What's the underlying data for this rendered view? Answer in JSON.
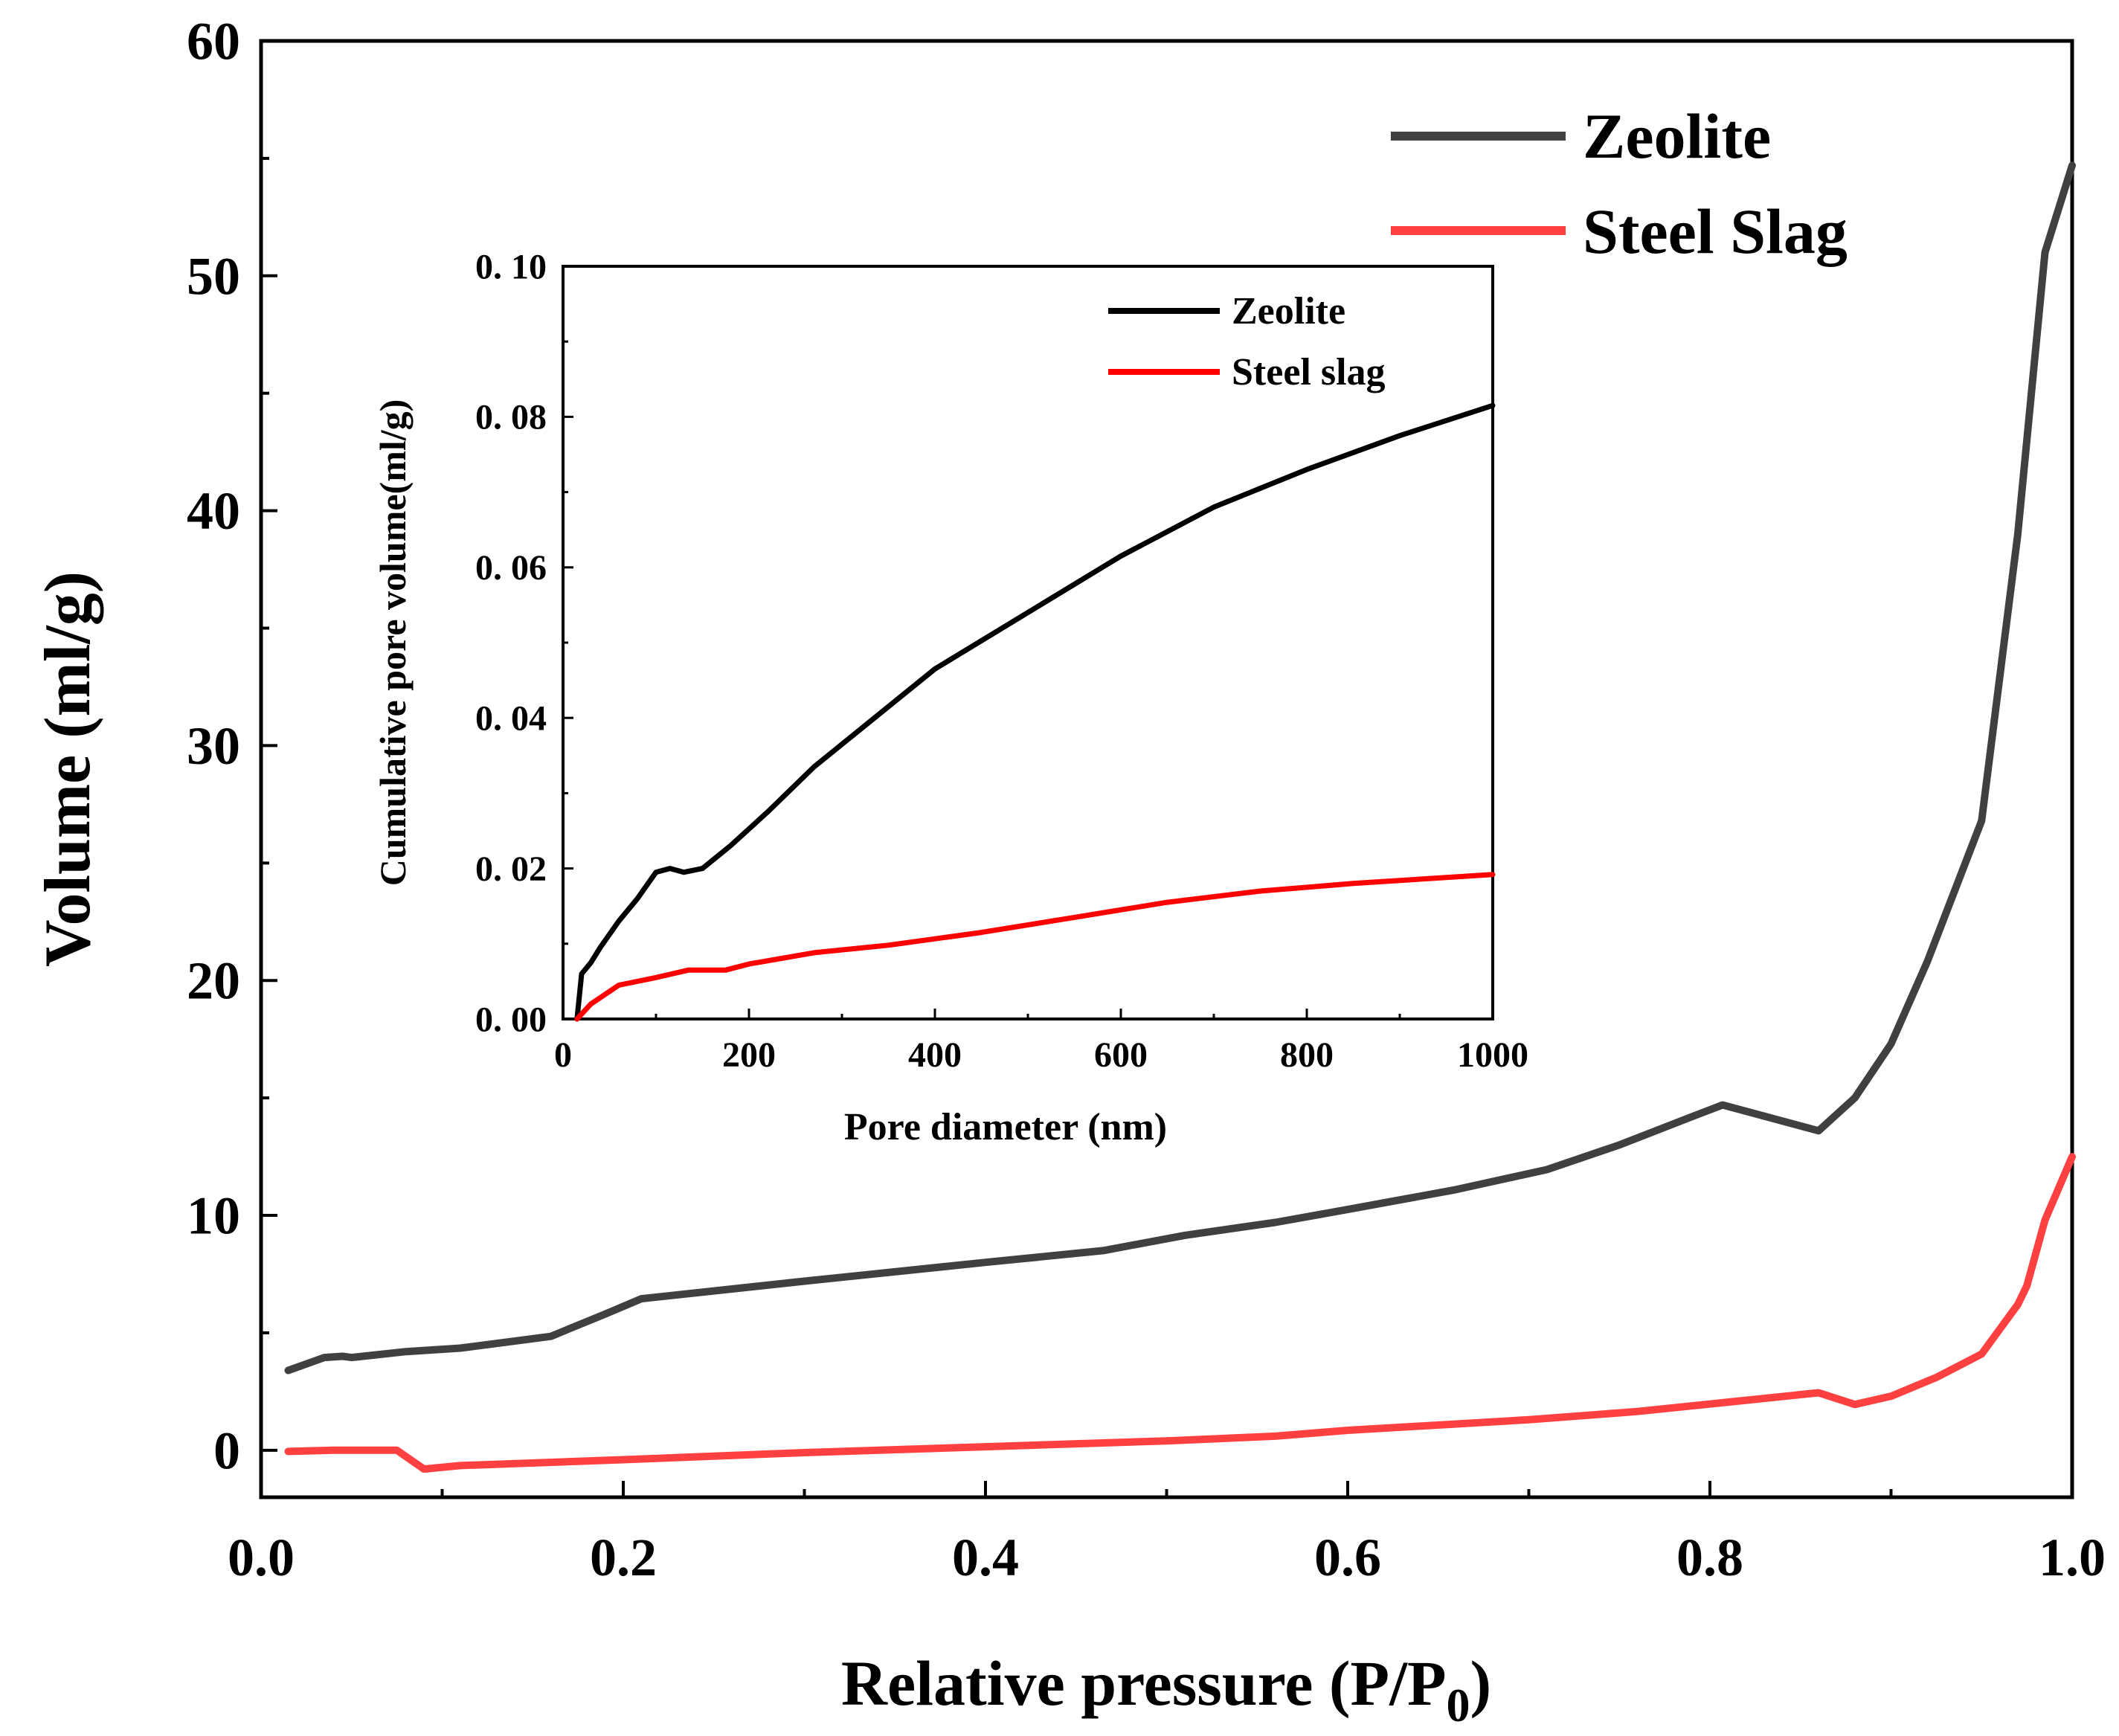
{
  "chart_data": [
    {
      "type": "line",
      "xlabel": "Relative pressure (P/P",
      "xlabel_sub": "0",
      "xlabel_close": ")",
      "ylabel": "Volume (ml/g)",
      "xlim": [
        0.0,
        1.0
      ],
      "ylim": [
        -2,
        60
      ],
      "xticks": [
        0.0,
        0.2,
        0.4,
        0.6,
        0.8,
        1.0
      ],
      "xtick_labels": [
        "0.0",
        "0.2",
        "0.4",
        "0.6",
        "0.8",
        "1.0"
      ],
      "yticks": [
        0,
        10,
        20,
        30,
        40,
        50,
        60
      ],
      "ytick_labels": [
        "0",
        "10",
        "20",
        "30",
        "40",
        "50",
        "60"
      ],
      "legend_position": "top-right",
      "series": [
        {
          "name": "Zeolite",
          "color": "#404040",
          "points": [
            [
              0.015,
              3.4
            ],
            [
              0.035,
              3.95
            ],
            [
              0.045,
              4.0
            ],
            [
              0.05,
              3.95
            ],
            [
              0.08,
              4.2
            ],
            [
              0.11,
              4.35
            ],
            [
              0.16,
              4.85
            ],
            [
              0.19,
              5.8
            ],
            [
              0.21,
              6.45
            ],
            [
              0.3,
              7.2
            ],
            [
              0.4,
              8.0
            ],
            [
              0.465,
              8.5
            ],
            [
              0.51,
              9.15
            ],
            [
              0.56,
              9.7
            ],
            [
              0.6,
              10.25
            ],
            [
              0.66,
              11.1
            ],
            [
              0.71,
              11.95
            ],
            [
              0.75,
              13.0
            ],
            [
              0.79,
              14.2
            ],
            [
              0.807,
              14.7
            ],
            [
              0.86,
              13.6
            ],
            [
              0.88,
              15.0
            ],
            [
              0.9,
              17.3
            ],
            [
              0.92,
              20.8
            ],
            [
              0.95,
              26.8
            ],
            [
              0.97,
              39.0
            ],
            [
              0.985,
              51.0
            ],
            [
              1.0,
              54.7
            ]
          ]
        },
        {
          "name": "Steel Slag",
          "color": "#ff4040",
          "points": [
            [
              0.015,
              -0.05
            ],
            [
              0.04,
              0.0
            ],
            [
              0.075,
              0.0
            ],
            [
              0.09,
              -0.8
            ],
            [
              0.11,
              -0.65
            ],
            [
              0.2,
              -0.4
            ],
            [
              0.3,
              -0.1
            ],
            [
              0.4,
              0.15
            ],
            [
              0.46,
              0.3
            ],
            [
              0.5,
              0.4
            ],
            [
              0.56,
              0.6
            ],
            [
              0.6,
              0.85
            ],
            [
              0.7,
              1.3
            ],
            [
              0.76,
              1.65
            ],
            [
              0.81,
              2.05
            ],
            [
              0.86,
              2.45
            ],
            [
              0.88,
              1.95
            ],
            [
              0.9,
              2.3
            ],
            [
              0.925,
              3.1
            ],
            [
              0.95,
              4.1
            ],
            [
              0.97,
              6.2
            ],
            [
              0.975,
              7.0
            ],
            [
              0.985,
              9.8
            ],
            [
              1.0,
              12.5
            ]
          ]
        }
      ]
    },
    {
      "type": "line",
      "xlabel": "Pore diameter (nm)",
      "ylabel": "Cumulative pore volume(ml/g)",
      "xlim": [
        0,
        1000
      ],
      "ylim": [
        0.0,
        0.1
      ],
      "xticks": [
        0,
        200,
        400,
        600,
        800,
        1000
      ],
      "xtick_labels": [
        "0",
        "200",
        "400",
        "600",
        "800",
        "1000"
      ],
      "yticks": [
        0.0,
        0.02,
        0.04,
        0.06,
        0.08,
        0.1
      ],
      "ytick_labels": [
        "0. 00",
        "0. 02",
        "0. 04",
        "0. 06",
        "0. 08",
        "0. 10"
      ],
      "legend_position": "top-right",
      "series": [
        {
          "name": "Zeolite",
          "color": "#000000",
          "points": [
            [
              15,
              0.0
            ],
            [
              20,
              0.006
            ],
            [
              30,
              0.0075
            ],
            [
              40,
              0.0095
            ],
            [
              60,
              0.013
            ],
            [
              80,
              0.016
            ],
            [
              100,
              0.0195
            ],
            [
              115,
              0.02
            ],
            [
              130,
              0.0195
            ],
            [
              150,
              0.02
            ],
            [
              180,
              0.023
            ],
            [
              220,
              0.0275
            ],
            [
              270,
              0.0335
            ],
            [
              320,
              0.0385
            ],
            [
              400,
              0.0465
            ],
            [
              500,
              0.054
            ],
            [
              600,
              0.0615
            ],
            [
              700,
              0.068
            ],
            [
              800,
              0.073
            ],
            [
              900,
              0.0775
            ],
            [
              1000,
              0.0815
            ]
          ]
        },
        {
          "name": "Steel slag",
          "color": "#ff0000",
          "points": [
            [
              15,
              0.0
            ],
            [
              30,
              0.002
            ],
            [
              60,
              0.0045
            ],
            [
              100,
              0.0055
            ],
            [
              135,
              0.0065
            ],
            [
              175,
              0.0065
            ],
            [
              200,
              0.0073
            ],
            [
              270,
              0.0088
            ],
            [
              350,
              0.0098
            ],
            [
              450,
              0.0115
            ],
            [
              550,
              0.0135
            ],
            [
              650,
              0.0155
            ],
            [
              750,
              0.017
            ],
            [
              850,
              0.018
            ],
            [
              1000,
              0.0192
            ]
          ]
        }
      ]
    }
  ]
}
